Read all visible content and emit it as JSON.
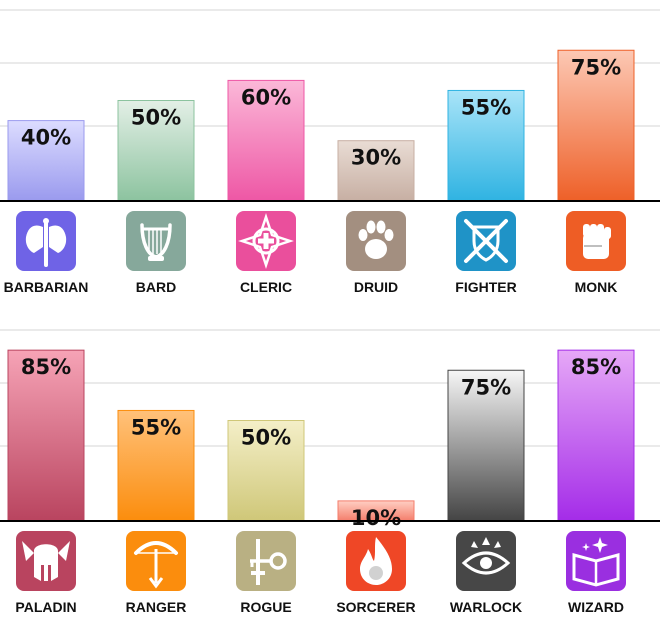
{
  "chart_data": [
    {
      "type": "bar",
      "categories": [
        "BARBARIAN",
        "BARD",
        "CLERIC",
        "DRUID",
        "FIGHTER",
        "MONK"
      ],
      "values": [
        40,
        50,
        60,
        30,
        55,
        75
      ],
      "value_labels": [
        "40%",
        "50%",
        "60%",
        "30%",
        "55%",
        "75%"
      ],
      "icons": [
        "double-axe-icon",
        "lyre-icon",
        "holy-symbol-icon",
        "paw-icon",
        "crossed-swords-shield-icon",
        "fist-icon"
      ],
      "colors": [
        [
          "#dcdcff",
          "#9a9aee"
        ],
        [
          "#e3efe6",
          "#8cc39f"
        ],
        [
          "#fbb8d8",
          "#ee57a5"
        ],
        [
          "#e9dcd4",
          "#c7afa3"
        ],
        [
          "#a9e4f8",
          "#2fb3e2"
        ],
        [
          "#fcc8b4",
          "#ee6028"
        ]
      ],
      "icon_colors": [
        "#6f63e6",
        "#86a89b",
        "#ea4f9c",
        "#a38f80",
        "#1f93c7",
        "#ee5d25"
      ],
      "ylim": [
        0,
        100
      ],
      "grid": true
    },
    {
      "type": "bar",
      "categories": [
        "PALADIN",
        "RANGER",
        "ROGUE",
        "SORCERER",
        "WARLOCK",
        "WIZARD"
      ],
      "values": [
        85,
        55,
        50,
        10,
        75,
        85
      ],
      "value_labels": [
        "85%",
        "55%",
        "50%",
        "10%",
        "75%",
        "85%"
      ],
      "icons": [
        "winged-helm-icon",
        "bow-arrow-icon",
        "dagger-key-icon",
        "flame-icon",
        "eye-sigil-icon",
        "spellbook-icon"
      ],
      "colors": [
        [
          "#f6a3b6",
          "#b9445f"
        ],
        [
          "#ffc17a",
          "#fb8d0d"
        ],
        [
          "#f4efc8",
          "#cfc778"
        ],
        [
          "#ffcfc3",
          "#f47d6b"
        ],
        [
          "#f6f6f6",
          "#444444"
        ],
        [
          "#e6a8f7",
          "#a42ce8"
        ]
      ],
      "icon_colors": [
        "#b9445f",
        "#fb8d0d",
        "#b9b083",
        "#ef4726",
        "#474747",
        "#9a2fe0"
      ],
      "ylim": [
        0,
        100
      ],
      "grid": true
    }
  ]
}
